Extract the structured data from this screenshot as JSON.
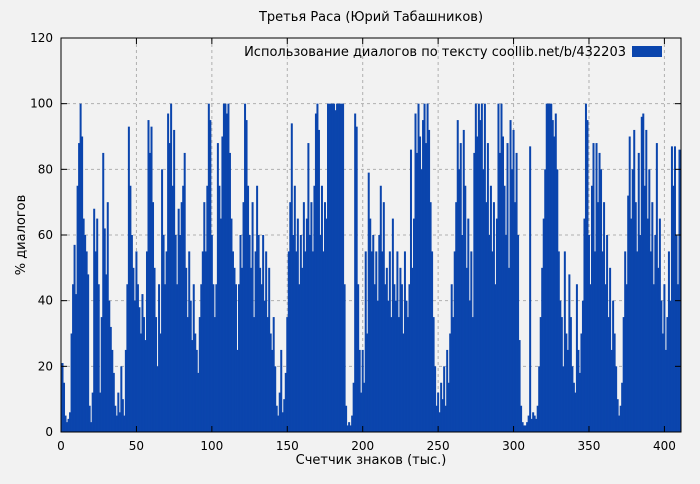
{
  "colors": {
    "background": "#f2f2f2",
    "bar": "#0b45ad",
    "axis": "#000000",
    "grid": "#b0b0b0",
    "text": "#000000"
  },
  "chart_data": {
    "type": "bar",
    "title": "Третья Раса (Юрий Табашников)",
    "xlabel": "Счетчик знаков (тыс.)",
    "ylabel": "% диалогов",
    "legend": "Использование диалогов по тексту  coollib.net/b/432203",
    "legend_position": "top-right-inside",
    "grid": true,
    "xlim": [
      0,
      411
    ],
    "ylim": [
      0,
      120
    ],
    "x_ticks": [
      0,
      50,
      100,
      150,
      200,
      250,
      300,
      350,
      400
    ],
    "y_ticks": [
      0,
      20,
      40,
      60,
      80,
      100,
      120
    ],
    "x_start": 0,
    "x_step": 1,
    "x_units": "thousand characters",
    "y_units": "% of dialogues",
    "values": [
      8,
      21,
      15,
      5,
      3,
      4,
      6,
      30,
      45,
      57,
      42,
      75,
      88,
      100,
      90,
      65,
      60,
      55,
      48,
      8,
      3,
      12,
      68,
      55,
      65,
      45,
      12,
      35,
      85,
      62,
      48,
      70,
      40,
      32,
      25,
      18,
      8,
      5,
      12,
      6,
      20,
      10,
      5,
      25,
      45,
      93,
      75,
      60,
      50,
      40,
      55,
      45,
      38,
      30,
      42,
      35,
      28,
      55,
      95,
      85,
      93,
      70,
      50,
      35,
      20,
      45,
      30,
      80,
      60,
      45,
      55,
      97,
      88,
      100,
      75,
      92,
      60,
      45,
      68,
      60,
      70,
      75,
      85,
      50,
      35,
      55,
      40,
      28,
      45,
      30,
      25,
      18,
      35,
      45,
      55,
      70,
      55,
      75,
      100,
      95,
      60,
      45,
      35,
      45,
      88,
      75,
      65,
      90,
      100,
      100,
      97,
      100,
      85,
      65,
      55,
      50,
      45,
      25,
      45,
      60,
      50,
      70,
      100,
      95,
      75,
      60,
      50,
      70,
      35,
      55,
      75,
      60,
      50,
      45,
      60,
      40,
      55,
      35,
      50,
      30,
      25,
      35,
      20,
      8,
      5,
      12,
      25,
      6,
      10,
      18,
      35,
      55,
      70,
      94,
      60,
      75,
      55,
      65,
      45,
      60,
      50,
      70,
      55,
      65,
      88,
      60,
      70,
      55,
      75,
      97,
      100,
      92,
      60,
      75,
      55,
      70,
      65,
      100,
      100,
      100,
      100,
      100,
      98,
      100,
      100,
      100,
      100,
      100,
      45,
      8,
      2,
      3,
      2,
      5,
      15,
      97,
      93,
      45,
      25,
      12,
      25,
      15,
      55,
      30,
      79,
      65,
      55,
      60,
      45,
      55,
      40,
      60,
      75,
      55,
      70,
      45,
      50,
      40,
      55,
      35,
      65,
      45,
      40,
      55,
      35,
      50,
      45,
      30,
      55,
      40,
      35,
      45,
      86,
      50,
      65,
      97,
      85,
      100,
      90,
      80,
      95,
      100,
      88,
      100,
      92,
      70,
      55,
      35,
      20,
      8,
      12,
      6,
      15,
      10,
      20,
      8,
      25,
      15,
      30,
      45,
      35,
      55,
      70,
      95,
      80,
      88,
      60,
      92,
      75,
      50,
      65,
      40,
      55,
      35,
      85,
      100,
      90,
      100,
      95,
      100,
      80,
      100,
      70,
      88,
      60,
      75,
      55,
      70,
      45,
      65,
      100,
      85,
      100,
      90,
      75,
      60,
      88,
      50,
      95,
      80,
      92,
      70,
      85,
      60,
      28,
      8,
      3,
      2,
      2,
      3,
      5,
      87,
      4,
      6,
      5,
      4,
      8,
      20,
      35,
      50,
      65,
      80,
      100,
      100,
      100,
      100,
      95,
      90,
      97,
      80,
      55,
      40,
      35,
      20,
      55,
      30,
      25,
      48,
      35,
      20,
      15,
      12,
      45,
      25,
      18,
      30,
      40,
      65,
      100,
      95,
      60,
      45,
      75,
      88,
      55,
      88,
      70,
      85,
      80,
      55,
      70,
      45,
      60,
      35,
      50,
      25,
      40,
      30,
      20,
      10,
      5,
      8,
      15,
      35,
      55,
      45,
      72,
      90,
      65,
      80,
      92,
      70,
      55,
      85,
      60,
      96,
      97,
      75,
      92,
      65,
      80,
      55,
      70,
      45,
      60,
      88,
      50,
      65,
      40,
      30,
      45,
      25,
      35,
      55,
      40,
      87,
      75,
      87,
      60,
      45,
      86,
      55
    ]
  }
}
